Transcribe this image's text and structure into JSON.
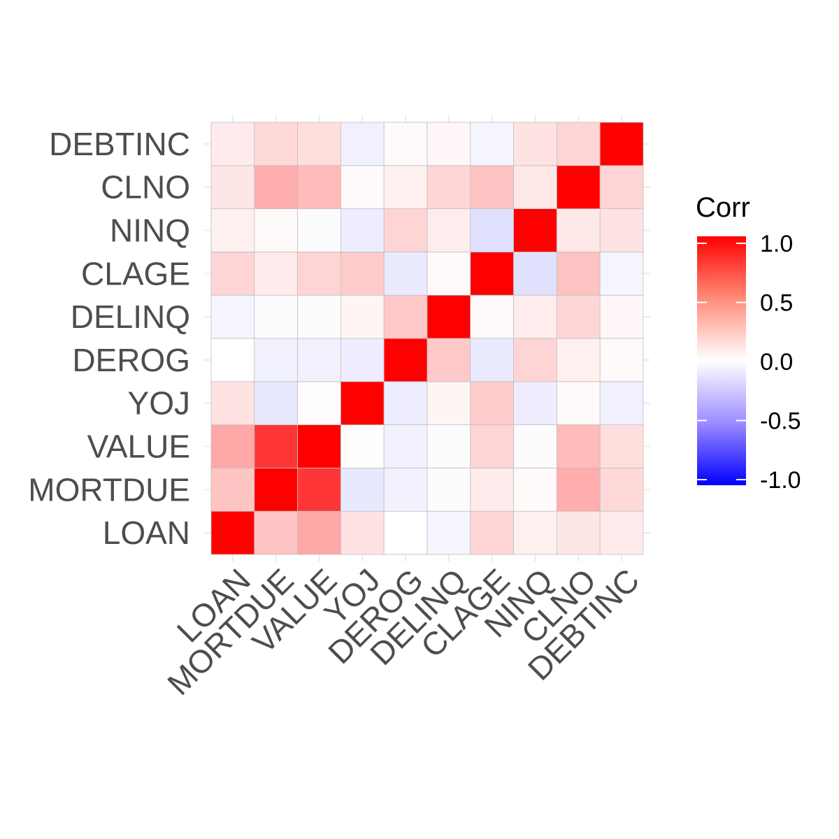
{
  "chart_data": {
    "type": "heatmap",
    "variables": [
      "LOAN",
      "MORTDUE",
      "VALUE",
      "YOJ",
      "DEROG",
      "DELINQ",
      "CLAGE",
      "NINQ",
      "CLNO",
      "DEBTINC"
    ],
    "matrix": [
      [
        1.0,
        0.23,
        0.34,
        0.11,
        0.0,
        -0.04,
        0.17,
        0.06,
        0.1,
        0.08
      ],
      [
        0.23,
        1.0,
        0.79,
        -0.09,
        -0.05,
        -0.01,
        0.08,
        0.02,
        0.32,
        0.15
      ],
      [
        0.34,
        0.79,
        1.0,
        0.01,
        -0.05,
        -0.01,
        0.17,
        -0.01,
        0.27,
        0.13
      ],
      [
        0.11,
        -0.09,
        0.01,
        1.0,
        -0.07,
        0.04,
        0.2,
        -0.07,
        0.02,
        -0.06
      ],
      [
        0.0,
        -0.05,
        -0.05,
        -0.07,
        1.0,
        0.21,
        -0.08,
        0.17,
        0.06,
        0.02
      ],
      [
        -0.04,
        -0.01,
        -0.01,
        0.04,
        0.21,
        1.0,
        0.02,
        0.07,
        0.16,
        0.03
      ],
      [
        0.17,
        0.08,
        0.17,
        0.2,
        -0.08,
        0.02,
        1.0,
        -0.12,
        0.24,
        -0.04
      ],
      [
        0.06,
        0.02,
        -0.01,
        -0.07,
        0.17,
        0.07,
        -0.12,
        1.0,
        0.09,
        0.11
      ],
      [
        0.1,
        0.32,
        0.27,
        0.02,
        0.06,
        0.16,
        0.24,
        0.09,
        1.0,
        0.17
      ],
      [
        0.08,
        0.15,
        0.13,
        -0.06,
        0.02,
        0.03,
        -0.04,
        0.11,
        0.17,
        1.0
      ]
    ],
    "legend": {
      "title": "Corr",
      "ticks": [
        1.0,
        0.5,
        0.0,
        -0.5,
        -1.0
      ],
      "tick_labels": [
        "1.0",
        "0.5",
        "0.0",
        "-0.5",
        "-1.0"
      ],
      "limits": [
        -1,
        1
      ]
    },
    "colors": {
      "low": "#0000ff",
      "mid": "#ffffff",
      "high": "#ff0000",
      "cell_border": "#bfbfbf",
      "gridline": "#ebebeb"
    },
    "y_order": "bottom-to-top",
    "legend_position": "right",
    "grid": true
  }
}
